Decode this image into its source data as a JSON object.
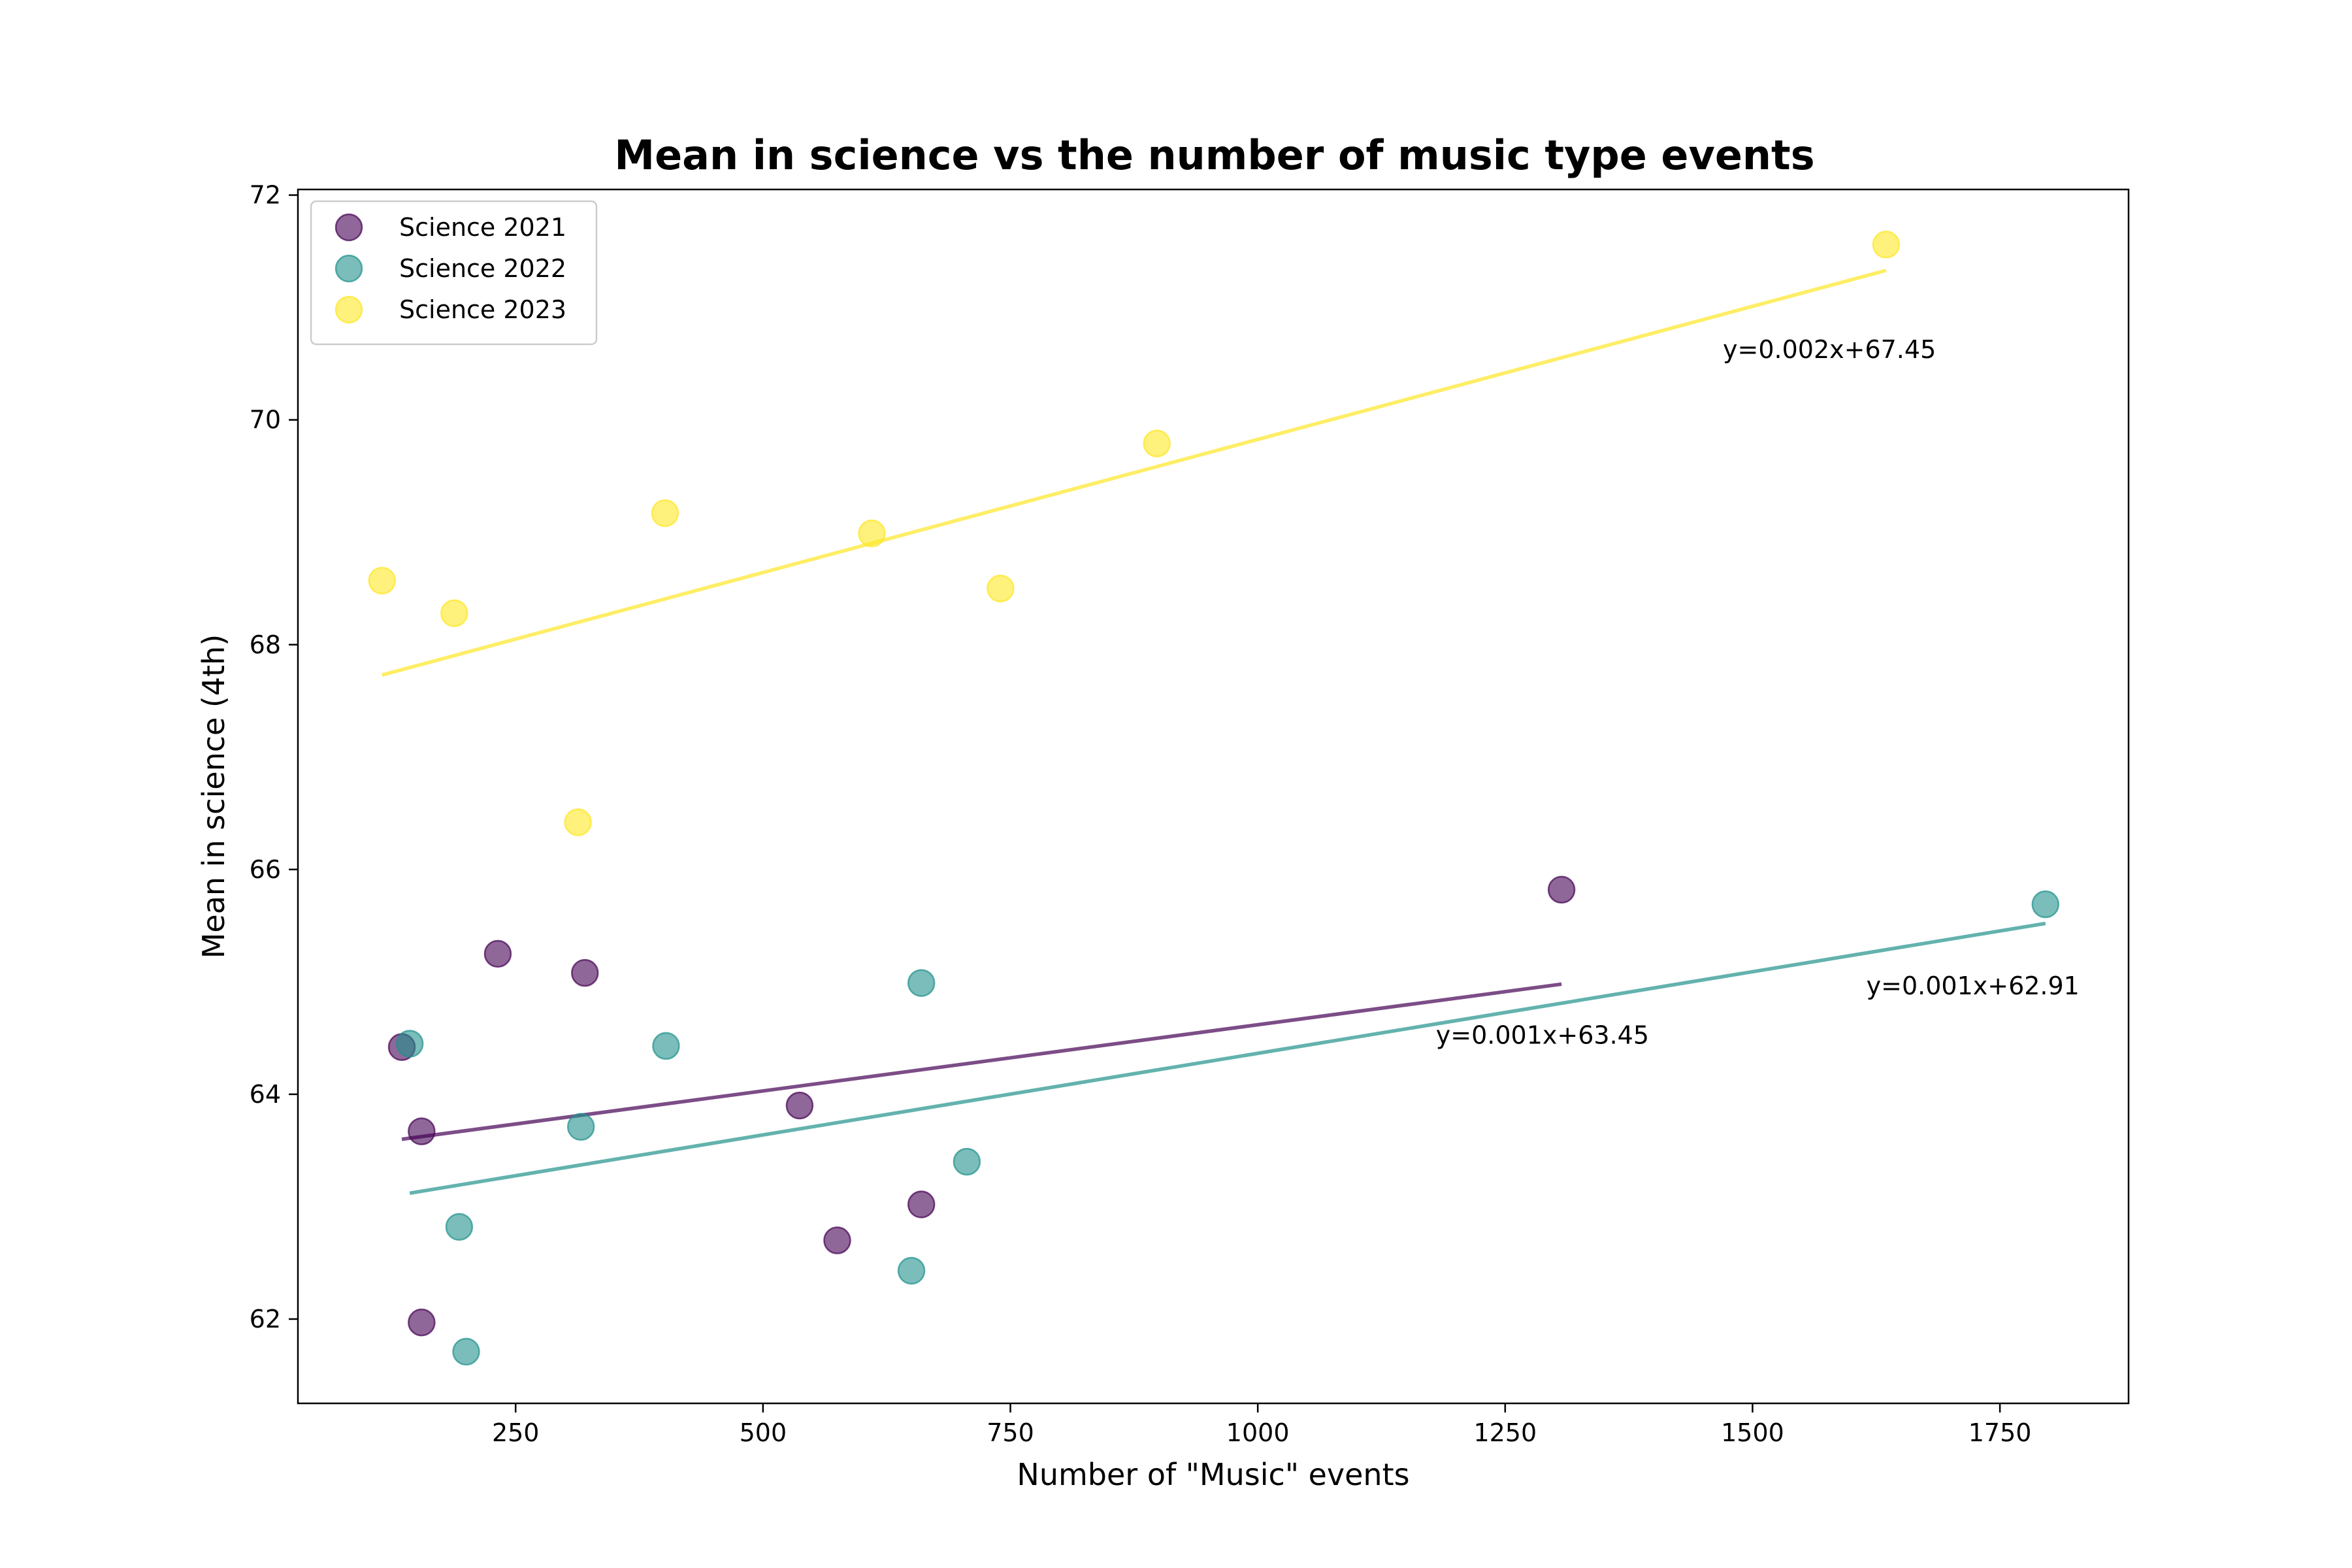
{
  "chart_data": {
    "type": "scatter",
    "title": "Mean in science vs the number of music type events",
    "xlabel": "Number of \"Music\" events",
    "ylabel": "Mean in science (4th)",
    "xlim": [
      30,
      1880
    ],
    "ylim": [
      61.25,
      72.05
    ],
    "xticks": [
      250,
      500,
      750,
      1000,
      1250,
      1500,
      1750
    ],
    "yticks": [
      62,
      64,
      66,
      68,
      70,
      72
    ],
    "grid": false,
    "legend_position": "top-left",
    "series": [
      {
        "name": "Science 2021",
        "color": "#440154",
        "points": [
          {
            "x": 135,
            "y": 64.42
          },
          {
            "x": 155,
            "y": 63.67
          },
          {
            "x": 155,
            "y": 61.97
          },
          {
            "x": 232,
            "y": 65.25
          },
          {
            "x": 320,
            "y": 65.08
          },
          {
            "x": 537,
            "y": 63.9
          },
          {
            "x": 575,
            "y": 62.7
          },
          {
            "x": 660,
            "y": 63.02
          },
          {
            "x": 1307,
            "y": 65.82
          }
        ],
        "fit": {
          "x": [
            135,
            1307
          ],
          "y": [
            63.6,
            64.98
          ]
        },
        "equation": "y=0.001x+63.45",
        "equation_pos": {
          "x": 1180,
          "y": 64.45
        }
      },
      {
        "name": "Science 2022",
        "color": "#21918c",
        "points": [
          {
            "x": 143,
            "y": 64.45
          },
          {
            "x": 193,
            "y": 62.82
          },
          {
            "x": 200,
            "y": 61.71
          },
          {
            "x": 316,
            "y": 63.71
          },
          {
            "x": 402,
            "y": 64.43
          },
          {
            "x": 650,
            "y": 62.43
          },
          {
            "x": 660,
            "y": 64.99
          },
          {
            "x": 706,
            "y": 63.4
          },
          {
            "x": 1796,
            "y": 65.69
          }
        ],
        "fit": {
          "x": [
            143,
            1796
          ],
          "y": [
            63.12,
            65.52
          ]
        },
        "equation": "y=0.001x+62.91",
        "equation_pos": {
          "x": 1615,
          "y": 64.89
        }
      },
      {
        "name": "Science 2023",
        "color": "#fde725",
        "points": [
          {
            "x": 115,
            "y": 68.57
          },
          {
            "x": 188,
            "y": 68.28
          },
          {
            "x": 313,
            "y": 66.42
          },
          {
            "x": 401,
            "y": 69.17
          },
          {
            "x": 610,
            "y": 68.99
          },
          {
            "x": 740,
            "y": 68.5
          },
          {
            "x": 898,
            "y": 69.79
          },
          {
            "x": 1635,
            "y": 71.56
          }
        ],
        "fit": {
          "x": [
            115,
            1635
          ],
          "y": [
            67.73,
            71.33
          ]
        },
        "equation": "y=0.002x+67.45",
        "equation_pos": {
          "x": 1470,
          "y": 70.55
        }
      }
    ]
  }
}
